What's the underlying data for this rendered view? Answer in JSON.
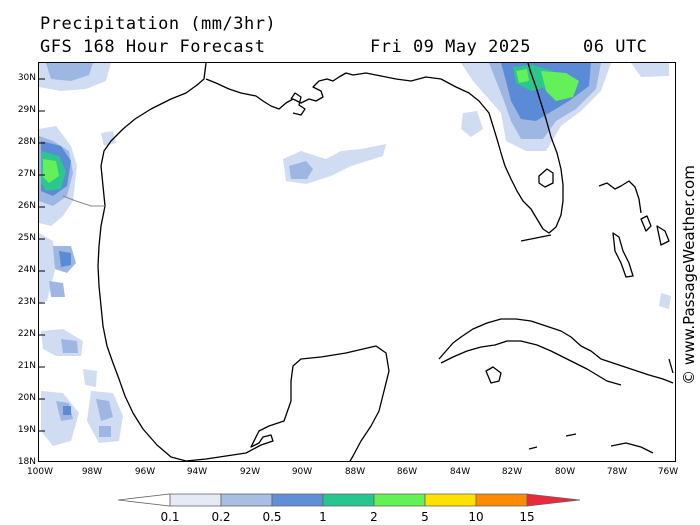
{
  "header": {
    "title": "Precipitation (mm/3hr)",
    "model": "GFS 168 Hour Forecast",
    "date": "Fri 09 May 2025",
    "time": "06 UTC"
  },
  "credit": "© www.PassageWeather.com",
  "axes": {
    "lat_labels": [
      "30N",
      "29N",
      "28N",
      "27N",
      "26N",
      "25N",
      "24N",
      "23N",
      "22N",
      "21N",
      "20N",
      "19N",
      "18N"
    ],
    "lon_labels": [
      "100W",
      "98W",
      "96W",
      "94W",
      "92W",
      "90W",
      "88W",
      "86W",
      "84W",
      "82W",
      "80W",
      "78W",
      "76W"
    ]
  },
  "legend": {
    "labels": [
      "0.1",
      "0.2",
      "0.5",
      "1",
      "2",
      "5",
      "10",
      "15"
    ],
    "colors": [
      "#ffffff",
      "#e4eaf6",
      "#a6bfe2",
      "#5f8fd6",
      "#27c58f",
      "#62f256",
      "#ffe100",
      "#ff8a00",
      "#ea2a3a"
    ]
  },
  "palette": {
    "light": "#d0dcf2",
    "mid": "#9db7e2",
    "dark": "#5b8bd6",
    "teal": "#2cc68e",
    "green": "#63f058"
  }
}
